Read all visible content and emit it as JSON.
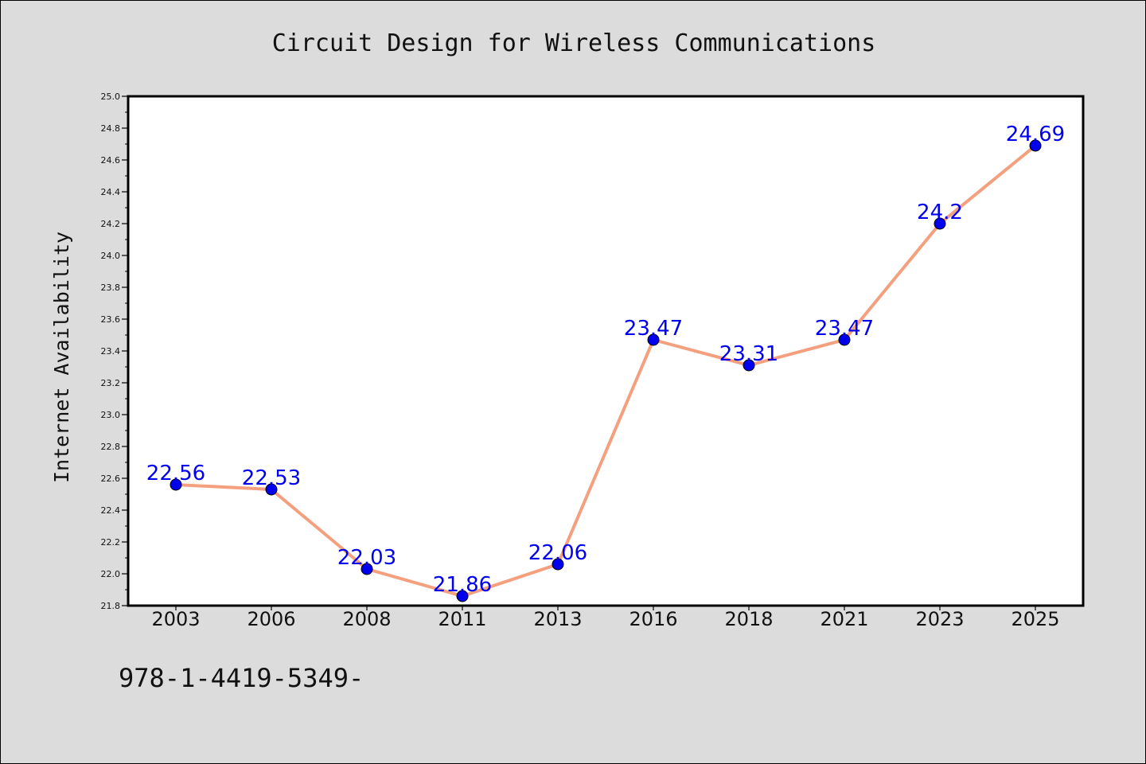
{
  "chart_data": {
    "type": "line",
    "title": "Circuit Design for Wireless Communications",
    "xlabel": "",
    "ylabel": "Internet Availability",
    "categories": [
      "2003",
      "2006",
      "2008",
      "2011",
      "2013",
      "2016",
      "2018",
      "2021",
      "2023",
      "2025"
    ],
    "values": [
      22.56,
      22.53,
      22.03,
      21.86,
      22.06,
      23.47,
      23.31,
      23.47,
      24.2,
      24.69
    ],
    "data_labels": [
      "22.56",
      "22.53",
      "22.03",
      "21.86",
      "22.06",
      "23.47",
      "23.31",
      "23.47",
      "24.2",
      "24.69"
    ],
    "yticks": [
      "21.8",
      "22.0",
      "22.2",
      "22.4",
      "22.6",
      "22.8",
      "23.0",
      "23.2",
      "23.4",
      "23.6",
      "23.8",
      "24.0",
      "24.2",
      "24.4",
      "24.6",
      "24.8",
      "25.0"
    ],
    "ylim": [
      21.8,
      25.0
    ],
    "grid": false,
    "line_color": "#f4a07e",
    "marker_color": "#0000ee",
    "label_color": "#0000ee"
  },
  "footnote": "978-1-4419-5349-"
}
